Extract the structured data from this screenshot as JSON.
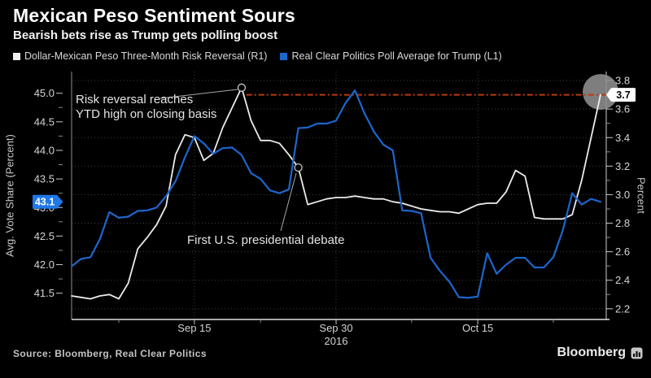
{
  "header": {
    "title": "Mexican Peso Sentiment Sours",
    "subtitle": "Bearish bets rise as Trump gets polling boost"
  },
  "legend": {
    "items": [
      {
        "label": "Dollar-Mexican Peso Three-Month Risk Reversal (R1)",
        "color": "#f0f0f0"
      },
      {
        "label": "Real Clear Politics Poll Average for Trump (L1)",
        "color": "#1d66cc"
      }
    ]
  },
  "chart_data": {
    "type": "line",
    "title": "Mexican Peso Sentiment Sours",
    "grid": "dotted",
    "background": "#000000",
    "x_range_days": [
      0,
      56.6
    ],
    "x_ticks_major_days": [
      13,
      28,
      43
    ],
    "x_tick_labels": [
      "Sep 15",
      "Sep 30",
      "Oct 15"
    ],
    "x_year_label": "2016",
    "x_ticks_minor_days": [
      5,
      20,
      36,
      51
    ],
    "left_axis": {
      "title": "Avg. Vote Share (Percent)",
      "ticks": [
        45.0,
        44.5,
        44.0,
        43.5,
        43.0,
        42.5,
        42.0,
        41.5
      ],
      "minor_ticks": [
        44.75,
        44.25,
        43.75,
        43.25,
        42.75,
        42.25,
        41.75
      ],
      "range": [
        41.04,
        45.38
      ],
      "last_value_tag": "43.1",
      "tag_color": "#1f78e8"
    },
    "right_axis": {
      "title": "Percent",
      "ticks": [
        3.8,
        3.6,
        3.4,
        3.2,
        3.0,
        2.8,
        2.6,
        2.4,
        2.2
      ],
      "minor_ticks": [
        3.7,
        3.5,
        3.3,
        3.1,
        2.9,
        2.7,
        2.5,
        2.3
      ],
      "range": [
        2.125,
        3.863
      ],
      "last_value_tag": "3.7",
      "tag_color": "#ffffff"
    },
    "series": [
      {
        "name": "Dollar-Mexican Peso Three-Month Risk Reversal (R1)",
        "axis": "right",
        "color": "#ececec",
        "width": 1.8,
        "values": [
          2.29,
          2.28,
          2.27,
          2.29,
          2.3,
          2.27,
          2.38,
          2.62,
          2.7,
          2.79,
          2.92,
          3.28,
          3.42,
          3.4,
          3.24,
          3.29,
          3.47,
          3.61,
          3.75,
          3.52,
          3.38,
          3.38,
          3.36,
          3.28,
          3.19,
          2.93,
          2.95,
          2.97,
          2.98,
          2.98,
          2.99,
          2.98,
          2.97,
          2.97,
          2.95,
          2.94,
          2.92,
          2.9,
          2.89,
          2.88,
          2.88,
          2.87,
          2.9,
          2.93,
          2.94,
          2.94,
          3.02,
          3.17,
          3.13,
          2.84,
          2.83,
          2.83,
          2.83,
          2.86,
          3.1,
          3.4,
          3.7
        ]
      },
      {
        "name": "Real Clear Politics Poll Average for Trump (L1)",
        "axis": "left",
        "color": "#1d66cc",
        "width": 2.2,
        "values": [
          41.97,
          42.1,
          42.13,
          42.45,
          42.92,
          42.82,
          42.84,
          42.94,
          42.95,
          43.0,
          43.2,
          43.46,
          43.88,
          44.25,
          44.12,
          43.94,
          44.04,
          44.05,
          43.92,
          43.6,
          43.5,
          43.3,
          43.25,
          43.32,
          44.39,
          44.4,
          44.47,
          44.47,
          44.52,
          44.83,
          45.05,
          44.65,
          44.33,
          44.1,
          44.0,
          42.95,
          42.94,
          42.9,
          42.12,
          41.89,
          41.7,
          41.43,
          41.42,
          41.44,
          42.2,
          41.84,
          42.0,
          42.12,
          42.12,
          41.95,
          41.95,
          42.13,
          42.6,
          43.25,
          43.05,
          43.15,
          43.1
        ]
      }
    ],
    "reference_line": {
      "axis": "right",
      "value": 3.7,
      "from_day": 18.5,
      "to_day": 57.3,
      "color": "#bb3a0e"
    },
    "highlight_circle": {
      "day": 56,
      "axis": "right",
      "value": 3.72,
      "radius": 22,
      "color": "#8f8f8f",
      "opacity": 0.88
    },
    "markers": [
      {
        "day": 18,
        "axis": "right",
        "value": 3.75
      },
      {
        "day": 24,
        "axis": "right",
        "value": 3.19
      }
    ],
    "annotations": [
      {
        "line1": "Risk reversal reaches",
        "line2": "YTD high on closing basis",
        "pointer": {
          "x1": 197,
          "y1": 121,
          "x2": 292,
          "y2": 110
        }
      },
      {
        "line1": "First U.S. presidential debate",
        "line2": "",
        "pointer": {
          "x1": 364,
          "y1": 213,
          "x2": 345,
          "y2": 284
        }
      }
    ]
  },
  "footer": {
    "source": "Source: Bloomberg, Real Clear Politics",
    "brand": "Bloomberg",
    "brand_icon": "bar-chart-icon"
  }
}
